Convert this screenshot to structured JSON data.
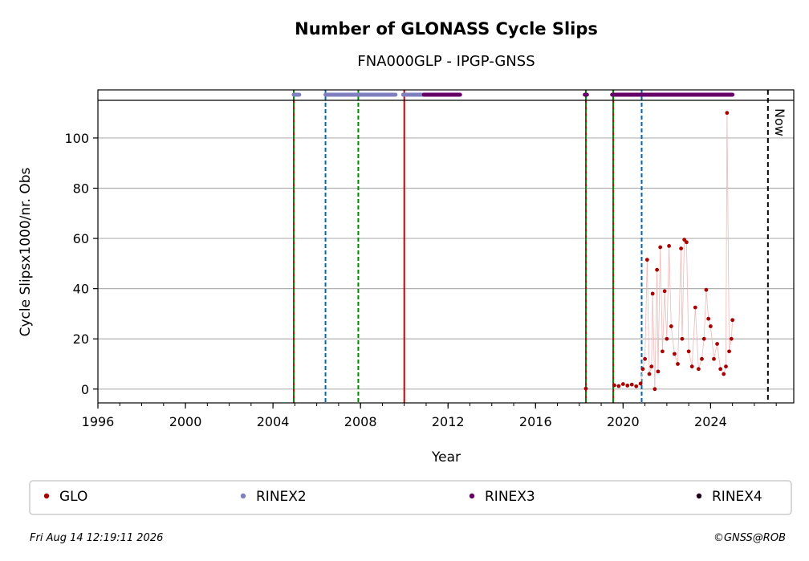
{
  "chart_data": {
    "type": "scatter",
    "title": "Number of GLONASS Cycle Slips",
    "subtitle": "FNA000GLP - IPGP-GNSS",
    "xlabel": "Year",
    "ylabel": "Cycle Slipsx1000/nr. Obs",
    "xlim": [
      1996,
      2027.8
    ],
    "ylim": [
      -5.5,
      115
    ],
    "x_ticks": [
      "1996",
      "2000",
      "2004",
      "2008",
      "2012",
      "2016",
      "2020",
      "2024"
    ],
    "y_ticks": [
      "0",
      "20",
      "40",
      "60",
      "80",
      "100"
    ],
    "grid": "horizontal",
    "legend_position": "bottom",
    "legend": [
      {
        "name": "GLO",
        "color": "#aa0000"
      },
      {
        "name": "RINEX2",
        "color": "#7f7fbf"
      },
      {
        "name": "RINEX3",
        "color": "#660066"
      },
      {
        "name": "RINEX4",
        "color": "#1a001a"
      }
    ],
    "now_label": "Now",
    "now_x": 2026.62,
    "vertical_lines": [
      {
        "x": 2004.95,
        "style": "solid-red-green-dashed"
      },
      {
        "x": 2006.4,
        "style": "dashed-blue"
      },
      {
        "x": 2007.9,
        "style": "dashed-green"
      },
      {
        "x": 2010.0,
        "style": "solid-red"
      },
      {
        "x": 2018.3,
        "style": "solid-red-green-dashed"
      },
      {
        "x": 2019.55,
        "style": "solid-red-green-dashed"
      },
      {
        "x": 2020.85,
        "style": "dashed-blue"
      }
    ],
    "rinex_bars": [
      {
        "name": "RINEX2",
        "ranges": [
          [
            2004.95,
            2005.2
          ],
          [
            2006.4,
            2009.6
          ],
          [
            2009.95,
            2010.9
          ]
        ]
      },
      {
        "name": "RINEX3",
        "ranges": [
          [
            2010.9,
            2012.55
          ],
          [
            2018.25,
            2018.35
          ],
          [
            2019.5,
            2025.0
          ]
        ]
      }
    ],
    "glo_points": [
      {
        "x": 2018.3,
        "y": 0.2
      },
      {
        "x": 2019.6,
        "y": 1.5
      },
      {
        "x": 2019.8,
        "y": 1.2
      },
      {
        "x": 2020.0,
        "y": 2.0
      },
      {
        "x": 2020.2,
        "y": 1.4
      },
      {
        "x": 2020.4,
        "y": 1.8
      },
      {
        "x": 2020.6,
        "y": 1.1
      },
      {
        "x": 2020.8,
        "y": 2.2
      },
      {
        "x": 2020.9,
        "y": 8.0
      },
      {
        "x": 2021.0,
        "y": 12.0
      },
      {
        "x": 2021.1,
        "y": 51.5
      },
      {
        "x": 2021.2,
        "y": 6.0
      },
      {
        "x": 2021.3,
        "y": 9.0
      },
      {
        "x": 2021.35,
        "y": 38.0
      },
      {
        "x": 2021.45,
        "y": 0.0
      },
      {
        "x": 2021.55,
        "y": 47.5
      },
      {
        "x": 2021.6,
        "y": 7.0
      },
      {
        "x": 2021.7,
        "y": 56.5
      },
      {
        "x": 2021.8,
        "y": 15.0
      },
      {
        "x": 2021.9,
        "y": 39.0
      },
      {
        "x": 2022.0,
        "y": 20.0
      },
      {
        "x": 2022.1,
        "y": 57.0
      },
      {
        "x": 2022.2,
        "y": 25.0
      },
      {
        "x": 2022.35,
        "y": 14.0
      },
      {
        "x": 2022.5,
        "y": 10.0
      },
      {
        "x": 2022.65,
        "y": 56.0
      },
      {
        "x": 2022.7,
        "y": 20.0
      },
      {
        "x": 2022.8,
        "y": 59.5
      },
      {
        "x": 2022.9,
        "y": 58.5
      },
      {
        "x": 2023.0,
        "y": 15.0
      },
      {
        "x": 2023.15,
        "y": 9.0
      },
      {
        "x": 2023.3,
        "y": 32.5
      },
      {
        "x": 2023.45,
        "y": 8.0
      },
      {
        "x": 2023.6,
        "y": 12.0
      },
      {
        "x": 2023.7,
        "y": 20.0
      },
      {
        "x": 2023.8,
        "y": 39.5
      },
      {
        "x": 2023.9,
        "y": 28.0
      },
      {
        "x": 2024.0,
        "y": 25.0
      },
      {
        "x": 2024.15,
        "y": 12.0
      },
      {
        "x": 2024.3,
        "y": 18.0
      },
      {
        "x": 2024.45,
        "y": 8.0
      },
      {
        "x": 2024.6,
        "y": 6.0
      },
      {
        "x": 2024.7,
        "y": 9.0
      },
      {
        "x": 2024.75,
        "y": 110.0
      },
      {
        "x": 2024.85,
        "y": 15.0
      },
      {
        "x": 2024.95,
        "y": 20.0
      },
      {
        "x": 2025.0,
        "y": 27.5
      }
    ]
  },
  "footer": {
    "timestamp": "Fri Aug 14 12:19:11 2026",
    "credit": "©GNSS@ROB"
  }
}
